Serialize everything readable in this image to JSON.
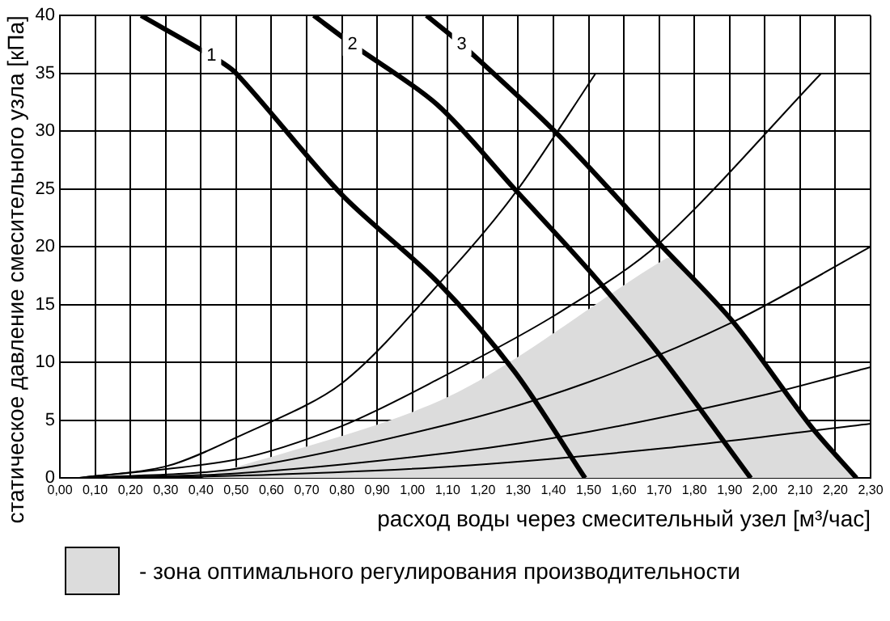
{
  "chart_data": {
    "type": "line",
    "xlabel": "расход воды через смесительный узел [м³/час]",
    "ylabel": "статическое давление смесительного узла [кПа]",
    "xlim": [
      0,
      2.3
    ],
    "xticks": [
      {
        "value": 0,
        "label": "0,00"
      },
      {
        "value": 0.1,
        "label": "0,10"
      },
      {
        "value": 0.2,
        "label": "0,20"
      },
      {
        "value": 0.3,
        "label": "0,30"
      },
      {
        "value": 0.4,
        "label": "0,40"
      },
      {
        "value": 0.5,
        "label": "0,50"
      },
      {
        "value": 0.6,
        "label": "0,60"
      },
      {
        "value": 0.7,
        "label": "0,70"
      },
      {
        "value": 0.8,
        "label": "0,80"
      },
      {
        "value": 0.9,
        "label": "0,90"
      },
      {
        "value": 1.0,
        "label": "1,00"
      },
      {
        "value": 1.1,
        "label": "1,10"
      },
      {
        "value": 1.2,
        "label": "1,20"
      },
      {
        "value": 1.3,
        "label": "1,30"
      },
      {
        "value": 1.4,
        "label": "1,40"
      },
      {
        "value": 1.5,
        "label": "1,50"
      },
      {
        "value": 1.6,
        "label": "1,60"
      },
      {
        "value": 1.7,
        "label": "1,70"
      },
      {
        "value": 1.8,
        "label": "1,80"
      },
      {
        "value": 1.9,
        "label": "1,90"
      },
      {
        "value": 2.0,
        "label": "2,00"
      },
      {
        "value": 2.1,
        "label": "2,10"
      },
      {
        "value": 2.2,
        "label": "2,20"
      },
      {
        "value": 2.3,
        "label": "2,30"
      }
    ],
    "ylim": [
      0,
      40
    ],
    "yticks": [
      0,
      5,
      10,
      15,
      20,
      25,
      30,
      35,
      40
    ],
    "grid": true,
    "legend": "bottom",
    "series": [
      {
        "name": "- зона оптимального регулирования производительности",
        "type": "area",
        "color": "#dcdcdc",
        "x": [
          0.4,
          1.1,
          1.72,
          1.75,
          1.91,
          2.13,
          2.26
        ],
        "values": [
          0,
          7,
          19,
          18.7,
          13.5,
          4.5,
          0
        ]
      },
      {
        "color": "#000000",
        "x": [
          0.05,
          0.3,
          0.5,
          0.8,
          1.11,
          1.3,
          1.52
        ],
        "values": [
          0,
          1,
          3.5,
          8.2,
          18,
          25,
          35
        ]
      },
      {
        "color": "#000000",
        "x": [
          0.05,
          0.5,
          0.8,
          1.07,
          1.4,
          1.7,
          2.16
        ],
        "values": [
          0,
          1.6,
          4.5,
          8.5,
          14,
          20.3,
          35
        ]
      },
      {
        "color": "#000000",
        "x": [
          0.05,
          0.5,
          1.11,
          1.5,
          1.91,
          2.3
        ],
        "values": [
          0,
          0.8,
          4.7,
          8.3,
          13.5,
          20
        ]
      },
      {
        "color": "#000000",
        "x": [
          0.05,
          0.5,
          1.11,
          1.5,
          2.0,
          2.3
        ],
        "values": [
          0,
          0.4,
          2.2,
          4.0,
          7.2,
          9.6
        ]
      },
      {
        "color": "#000000",
        "x": [
          0.05,
          0.5,
          1.11,
          1.72,
          2.3
        ],
        "values": [
          0,
          0.2,
          1,
          2.6,
          4.7
        ]
      },
      {
        "name": "1",
        "color": "#000000",
        "x": [
          0.23,
          0.43,
          0.5,
          0.8,
          1.07,
          1.29,
          1.49
        ],
        "values": [
          40,
          36.5,
          35,
          24.5,
          17,
          9.2,
          0
        ]
      },
      {
        "name": "2",
        "color": "#000000",
        "x": [
          0.72,
          0.83,
          1.07,
          1.29,
          1.5,
          1.7,
          1.96
        ],
        "values": [
          40,
          37.5,
          32.3,
          25,
          18,
          10.7,
          0
        ]
      },
      {
        "name": "3",
        "color": "#000000",
        "x": [
          1.04,
          1.14,
          1.41,
          1.7,
          1.91,
          2.13,
          2.26
        ],
        "values": [
          40,
          37.5,
          29.8,
          20.3,
          13.5,
          4.5,
          0
        ]
      }
    ]
  }
}
